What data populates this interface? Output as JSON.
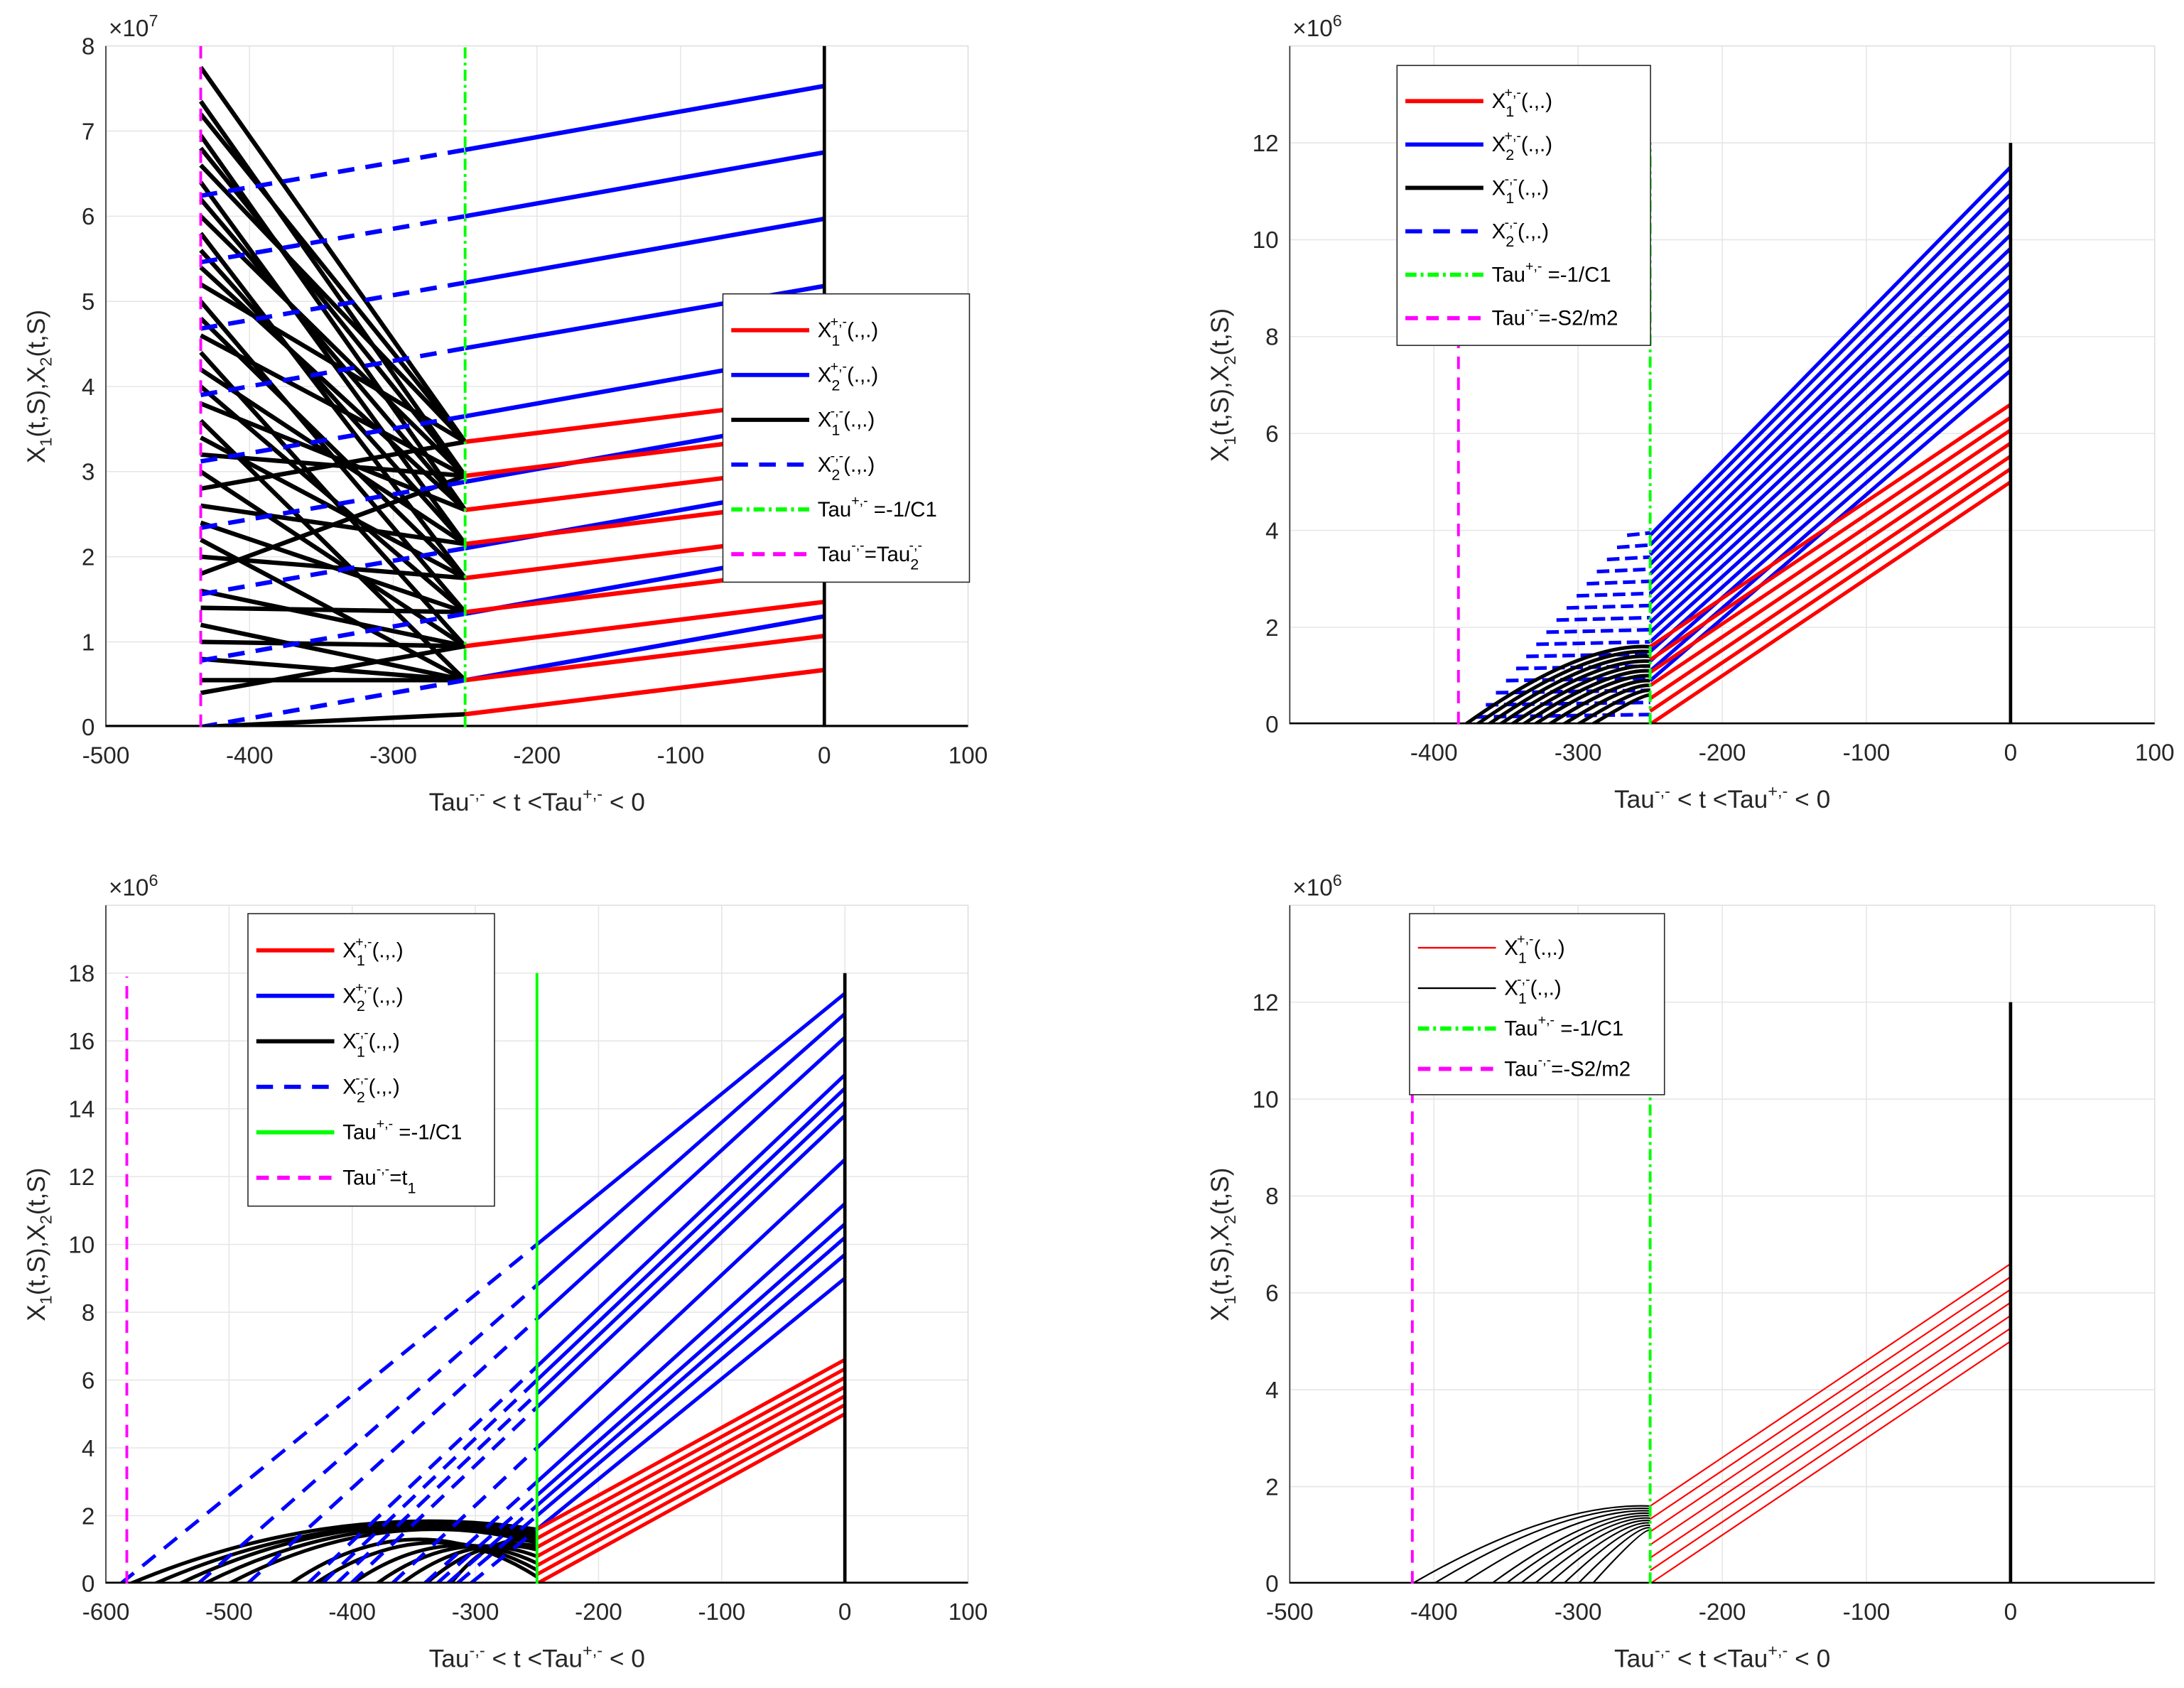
{
  "chart_data": [
    {
      "type": "line",
      "id": "top-left",
      "exponent": {
        "base": "×10",
        "power": "7"
      },
      "xlim": [
        -500,
        100
      ],
      "ylim": [
        0,
        8
      ],
      "xticks": [
        "-500",
        "-400",
        "-300",
        "-200",
        "-100",
        "0",
        "100"
      ],
      "yticks": [
        "0",
        "1",
        "2",
        "3",
        "4",
        "5",
        "6",
        "7",
        "8"
      ],
      "xlabel": [
        "Tau",
        "-,-",
        " < t <Tau",
        "+,-",
        " < 0"
      ],
      "ylabel": [
        "X",
        "1",
        "(t,S),X",
        "2",
        "(t,S)"
      ],
      "grid": true,
      "legend": [
        {
          "key": "red",
          "base": "X",
          "sub": "1",
          "sup": "+,-",
          "tail": "(.,.)"
        },
        {
          "key": "blue",
          "base": "X",
          "sub": "2",
          "sup": "+,-",
          "tail": "(.,.)"
        },
        {
          "key": "black",
          "base": "X",
          "sub": "1",
          "sup": "-,-",
          "tail": "(.,.)"
        },
        {
          "key": "bluedash",
          "base": "X",
          "sub": "2",
          "sup": "-,-",
          "tail": "(.,.)"
        },
        {
          "key": "greendashdot",
          "base": "Tau",
          "sub": "",
          "sup": "+,-",
          "tail": " =-1/C1"
        },
        {
          "key": "magenta",
          "base": "Tau",
          "sub": "",
          "sup": "-,-",
          "tail": "=Tau",
          "sub2": "2",
          "sup2": "-,-"
        }
      ],
      "tau_plus": -250,
      "tau_minus": -434,
      "vline_zero_top": 8,
      "red_segments_start_end": [
        [
          0.15,
          0.67
        ],
        [
          0.55,
          1.07
        ],
        [
          0.95,
          1.47
        ],
        [
          1.35,
          1.87
        ],
        [
          1.75,
          2.27
        ],
        [
          2.15,
          2.67
        ],
        [
          2.55,
          3.07
        ],
        [
          2.95,
          3.47
        ],
        [
          3.35,
          3.87
        ]
      ],
      "blue_segments_start_end": [
        [
          0.55,
          1.3
        ],
        [
          1.33,
          2.08
        ],
        [
          2.1,
          2.85
        ],
        [
          2.88,
          3.63
        ],
        [
          3.65,
          4.4
        ],
        [
          4.45,
          5.18
        ],
        [
          5.22,
          5.97
        ],
        [
          6.0,
          6.75
        ],
        [
          6.78,
          7.53
        ]
      ],
      "blue_dashed_start_end": [
        [
          0.0,
          0.55
        ],
        [
          0.78,
          1.33
        ],
        [
          1.56,
          2.1
        ],
        [
          2.34,
          2.88
        ],
        [
          3.12,
          3.65
        ],
        [
          3.9,
          4.45
        ],
        [
          4.68,
          5.22
        ],
        [
          5.46,
          6.0
        ],
        [
          6.24,
          6.78
        ]
      ],
      "black_segments_start_end": [
        [
          7.75,
          3.35
        ],
        [
          7.35,
          2.95
        ],
        [
          7.2,
          3.35
        ],
        [
          6.95,
          2.55
        ],
        [
          6.8,
          2.95
        ],
        [
          6.6,
          3.35
        ],
        [
          6.4,
          2.15
        ],
        [
          6.2,
          2.55
        ],
        [
          6.0,
          2.95
        ],
        [
          5.8,
          1.75
        ],
        [
          5.6,
          2.15
        ],
        [
          5.4,
          2.55
        ],
        [
          5.2,
          3.35
        ],
        [
          5.0,
          1.35
        ],
        [
          4.8,
          1.75
        ],
        [
          4.6,
          2.95
        ],
        [
          4.4,
          0.95
        ],
        [
          4.2,
          2.15
        ],
        [
          4.0,
          1.35
        ],
        [
          3.8,
          2.55
        ],
        [
          3.6,
          0.55
        ],
        [
          3.4,
          1.75
        ],
        [
          3.2,
          2.95
        ],
        [
          3.0,
          0.95
        ],
        [
          2.8,
          3.35
        ],
        [
          2.6,
          2.15
        ],
        [
          2.4,
          1.35
        ],
        [
          2.2,
          0.55
        ],
        [
          2.0,
          1.75
        ],
        [
          1.8,
          2.95
        ],
        [
          1.6,
          0.95
        ],
        [
          1.4,
          1.35
        ],
        [
          1.2,
          0.55
        ],
        [
          1.0,
          0.95
        ],
        [
          0.8,
          0.55
        ],
        [
          0.55,
          0.55
        ],
        [
          0.4,
          0.95
        ],
        [
          0.0,
          0.15
        ]
      ]
    },
    {
      "type": "line",
      "id": "top-right",
      "exponent": {
        "base": "×10",
        "power": "6"
      },
      "xlim": [
        -500,
        100
      ],
      "ylim": [
        0,
        14
      ],
      "xticks": [
        "-400",
        "-300",
        "-200",
        "-100",
        "0",
        "100"
      ],
      "yticks": [
        "0",
        "2",
        "4",
        "6",
        "8",
        "10",
        "12"
      ],
      "xlabel": [
        "Tau",
        "-,-",
        " < t <Tau",
        "+,-",
        " < 0"
      ],
      "ylabel": [
        "X",
        "1",
        "(t,S),X",
        "2",
        "(t,S)"
      ],
      "grid": true,
      "legend": [
        {
          "key": "red",
          "base": "X",
          "sub": "1",
          "sup": "+,-",
          "tail": "(.,.)"
        },
        {
          "key": "blue",
          "base": "X",
          "sub": "2",
          "sup": "+,-",
          "tail": "(.,.)"
        },
        {
          "key": "black",
          "base": "X",
          "sub": "1",
          "sup": "-,-",
          "tail": "(.,.)"
        },
        {
          "key": "bluedash",
          "base": "X",
          "sub": "2",
          "sup": "-,-",
          "tail": "(.,.)"
        },
        {
          "key": "greendashdot",
          "base": "Tau",
          "sub": "",
          "sup": "+,-",
          "tail": " =-1/C1"
        },
        {
          "key": "magenta",
          "base": "Tau",
          "sub": "",
          "sup": "-,-",
          "tail": "=-S2/m2"
        }
      ],
      "tau_plus": -250,
      "tau_minus": -383,
      "vline_zero_top": 12,
      "red_segments_start_end": [
        [
          0,
          5.0
        ],
        [
          0.27,
          5.27
        ],
        [
          0.53,
          5.53
        ],
        [
          0.8,
          5.8
        ],
        [
          1.07,
          6.07
        ],
        [
          1.33,
          6.33
        ],
        [
          1.6,
          6.6
        ]
      ],
      "blue_segments_start_end": [
        [
          0.9,
          7.3
        ],
        [
          1.1,
          7.58
        ],
        [
          1.3,
          7.86
        ],
        [
          1.5,
          8.14
        ],
        [
          1.7,
          8.42
        ],
        [
          1.9,
          8.7
        ],
        [
          2.1,
          8.98
        ],
        [
          2.3,
          9.26
        ],
        [
          2.5,
          9.54
        ],
        [
          2.7,
          9.82
        ],
        [
          2.9,
          10.1
        ],
        [
          3.1,
          10.38
        ],
        [
          3.3,
          10.66
        ],
        [
          3.5,
          10.94
        ],
        [
          3.7,
          11.22
        ],
        [
          3.9,
          11.5
        ]
      ],
      "blue_dashed_rows_y_xstart": [
        [
          0.15,
          -371
        ],
        [
          0.4,
          -364
        ],
        [
          0.65,
          -357
        ],
        [
          0.9,
          -350
        ],
        [
          1.15,
          -343
        ],
        [
          1.4,
          -336
        ],
        [
          1.65,
          -329
        ],
        [
          1.9,
          -322
        ],
        [
          2.15,
          -315
        ],
        [
          2.4,
          -308
        ],
        [
          2.65,
          -301
        ],
        [
          2.9,
          -294
        ],
        [
          3.15,
          -287
        ],
        [
          3.4,
          -280
        ],
        [
          3.65,
          -273
        ],
        [
          3.9,
          -266
        ]
      ],
      "black_curves_xstart_yend": [
        [
          -378,
          1.6
        ],
        [
          -370,
          1.5
        ],
        [
          -362,
          1.4
        ],
        [
          -354,
          1.3
        ],
        [
          -346,
          1.2
        ],
        [
          -338,
          1.1
        ],
        [
          -330,
          1.0
        ],
        [
          -320,
          0.9
        ],
        [
          -310,
          0.8
        ],
        [
          -300,
          0.7
        ],
        [
          -290,
          0.6
        ]
      ]
    },
    {
      "type": "line",
      "id": "bottom-left",
      "exponent": {
        "base": "×10",
        "power": "6"
      },
      "xlim": [
        -600,
        100
      ],
      "ylim": [
        0,
        20
      ],
      "xticks": [
        "-600",
        "-500",
        "-400",
        "-300",
        "-200",
        "-100",
        "0",
        "100"
      ],
      "yticks": [
        "0",
        "2",
        "4",
        "6",
        "8",
        "10",
        "12",
        "14",
        "16",
        "18"
      ],
      "xlabel": [
        "Tau",
        "-,-",
        " < t <Tau",
        "+,-",
        " < 0"
      ],
      "ylabel": [
        "X",
        "1",
        "(t,S),X",
        "2",
        "(t,S)"
      ],
      "grid": true,
      "legend": [
        {
          "key": "red",
          "base": "X",
          "sub": "1",
          "sup": "+,-",
          "tail": "(.,.)"
        },
        {
          "key": "blue",
          "base": "X",
          "sub": "2",
          "sup": "+,-",
          "tail": "(.,.)"
        },
        {
          "key": "black",
          "base": "X",
          "sub": "1",
          "sup": "-,-",
          "tail": "(.,.)"
        },
        {
          "key": "bluedash",
          "base": "X",
          "sub": "2",
          "sup": "-,-",
          "tail": "(.,.)"
        },
        {
          "key": "greensolid",
          "base": "Tau",
          "sub": "",
          "sup": "+,-",
          "tail": " =-1/C1"
        },
        {
          "key": "magenta",
          "base": "Tau",
          "sub": "",
          "sup": "-,-",
          "tail": "=t",
          "sub2": "1"
        }
      ],
      "tau_plus": -250,
      "tau_minus": -583,
      "vline_zero_top": 18,
      "red_segments_start_end": [
        [
          0,
          5.0
        ],
        [
          0.27,
          5.27
        ],
        [
          0.53,
          5.53
        ],
        [
          0.8,
          5.8
        ],
        [
          1.07,
          6.07
        ],
        [
          1.33,
          6.33
        ],
        [
          1.6,
          6.6
        ]
      ],
      "blue_lines_at_tau_plus_and_zero": [
        [
          1.6,
          9.0
        ],
        [
          2.0,
          9.7
        ],
        [
          2.3,
          10.2
        ],
        [
          2.6,
          10.6
        ],
        [
          3.0,
          11.2
        ],
        [
          4.0,
          12.5
        ],
        [
          5.2,
          13.8
        ],
        [
          5.6,
          14.2
        ],
        [
          6.0,
          14.6
        ],
        [
          6.4,
          15.0
        ],
        [
          7.8,
          16.1
        ],
        [
          8.8,
          16.8
        ],
        [
          10.0,
          17.4
        ]
      ],
      "black_arcs_xstart_yend_peak": [
        [
          -580,
          1.6,
          1.65
        ],
        [
          -560,
          1.5,
          1.6
        ],
        [
          -540,
          1.4,
          1.6
        ],
        [
          -520,
          1.3,
          1.55
        ],
        [
          -500,
          1.2,
          1.5
        ],
        [
          -450,
          0.2,
          1.3
        ],
        [
          -430,
          0.4,
          1.2
        ],
        [
          -400,
          0.6,
          1.1
        ],
        [
          -380,
          0.8,
          1.05
        ],
        [
          -360,
          1.0,
          1.0
        ],
        [
          -340,
          1.1,
          1.0
        ],
        [
          -320,
          1.2,
          1.1
        ]
      ]
    },
    {
      "type": "line",
      "id": "bottom-right",
      "exponent": {
        "base": "×10",
        "power": "6"
      },
      "xlim": [
        -500,
        100
      ],
      "ylim": [
        0,
        14
      ],
      "xticks": [
        "-500",
        "-400",
        "-300",
        "-200",
        "-100",
        "0"
      ],
      "yticks": [
        "0",
        "2",
        "4",
        "6",
        "8",
        "10",
        "12"
      ],
      "xlabel": [
        "Tau",
        "-,-",
        " < t <Tau",
        "+,-",
        " < 0"
      ],
      "ylabel": [
        "X",
        "1",
        "(t,S),X",
        "2",
        "(t,S)"
      ],
      "grid": true,
      "legend": [
        {
          "key": "redthin",
          "base": "X",
          "sub": "1",
          "sup": "+,-",
          "tail": "(.,.)"
        },
        {
          "key": "blackthin",
          "base": "X",
          "sub": "1",
          "sup": "-,-",
          "tail": "(.,.)"
        },
        {
          "key": "greendashdot",
          "base": "Tau",
          "sub": "",
          "sup": "+,-",
          "tail": " =-1/C1"
        },
        {
          "key": "magenta",
          "base": "Tau",
          "sub": "",
          "sup": "-,-",
          "tail": "=-S2/m2"
        }
      ],
      "tau_plus": -250,
      "tau_minus": -415,
      "vline_zero_top": 12,
      "red_segments_start_end": [
        [
          0,
          5.0
        ],
        [
          0.27,
          5.27
        ],
        [
          0.53,
          5.53
        ],
        [
          0.8,
          5.8
        ],
        [
          1.07,
          6.07
        ],
        [
          1.33,
          6.33
        ],
        [
          1.6,
          6.6
        ]
      ],
      "black_curves_xstart_yend": [
        [
          -415,
          1.6
        ],
        [
          -400,
          1.55
        ],
        [
          -380,
          1.5
        ],
        [
          -360,
          1.45
        ],
        [
          -350,
          1.4
        ],
        [
          -340,
          1.35
        ],
        [
          -330,
          1.3
        ],
        [
          -320,
          1.25
        ],
        [
          -310,
          1.2
        ],
        [
          -300,
          1.15
        ],
        [
          -290,
          1.1
        ]
      ]
    }
  ],
  "colors": {
    "red": "#ff0000",
    "blue": "#0000ff",
    "black": "#000000",
    "green": "#00ff00",
    "magenta": "#ff00ff",
    "grid": "#e6e6e6"
  }
}
